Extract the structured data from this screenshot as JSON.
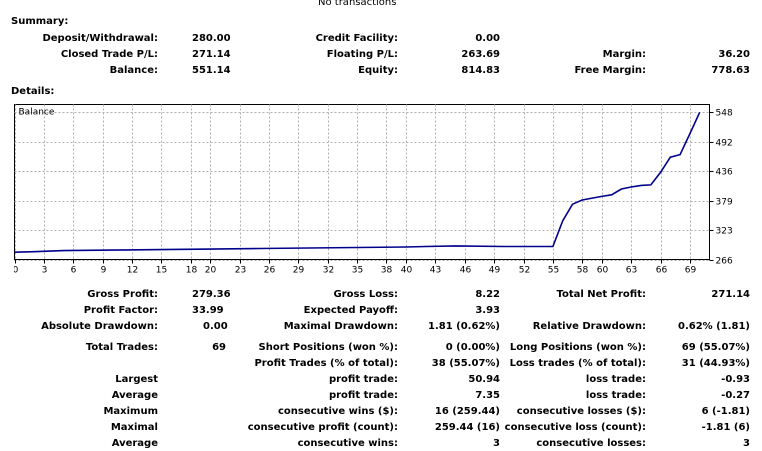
{
  "header": {
    "top_note": "No transactions"
  },
  "summary": {
    "title": "Summary:",
    "col1": [
      {
        "label": "Deposit/Withdrawal:",
        "value": "280.00"
      },
      {
        "label": "Closed Trade P/L:",
        "value": "271.14"
      },
      {
        "label": "Balance:",
        "value": "551.14"
      }
    ],
    "col2": [
      {
        "label": "Credit Facility:",
        "value": "0.00"
      },
      {
        "label": "Floating P/L:",
        "value": "263.69"
      },
      {
        "label": "Equity:",
        "value": "814.83"
      }
    ],
    "col3": [
      {
        "label": "Margin:",
        "value": "36.20"
      },
      {
        "label": "Free Margin:",
        "value": "778.63"
      }
    ]
  },
  "details": {
    "title": "Details:"
  },
  "chart_data": {
    "type": "line",
    "title": "Balance",
    "x_ticks": [
      0,
      3,
      6,
      9,
      12,
      15,
      18,
      20,
      23,
      26,
      29,
      32,
      35,
      38,
      40,
      43,
      46,
      49,
      52,
      55,
      58,
      60,
      63,
      66,
      69
    ],
    "y_ticks": [
      266,
      323,
      379,
      436,
      492,
      548
    ],
    "xlim": [
      0,
      71
    ],
    "ylim": [
      266,
      563
    ],
    "grid": true,
    "series": [
      {
        "color": "#00008b",
        "x": [
          0,
          2,
          5,
          10,
          15,
          20,
          25,
          30,
          35,
          40,
          42,
          45,
          50,
          55,
          56,
          57,
          58,
          60,
          61,
          62,
          63,
          64,
          65,
          66,
          67,
          68,
          69,
          70
        ],
        "y": [
          280,
          281,
          283,
          284,
          285,
          286,
          287,
          288,
          289,
          290,
          291,
          292,
          291,
          291,
          340,
          372,
          380,
          387,
          390,
          401,
          405,
          408,
          409,
          433,
          462,
          467,
          507,
          548
        ]
      }
    ]
  },
  "stats": {
    "gross_profit_label": "Gross Profit:",
    "gross_profit": "279.36",
    "gross_loss_label": "Gross Loss:",
    "gross_loss": "8.22",
    "total_net_profit_label": "Total Net Profit:",
    "total_net_profit": "271.14",
    "profit_factor_label": "Profit Factor:",
    "profit_factor": "33.99",
    "expected_payoff_label": "Expected Payoff:",
    "expected_payoff": "3.93",
    "absolute_drawdown_label": "Absolute Drawdown:",
    "absolute_drawdown": "0.00",
    "maximal_drawdown_label": "Maximal Drawdown:",
    "maximal_drawdown": "1.81 (0.62%)",
    "relative_drawdown_label": "Relative Drawdown:",
    "relative_drawdown": "0.62% (1.81)",
    "total_trades_label": "Total Trades:",
    "total_trades": "69",
    "short_positions_label": "Short Positions (won %):",
    "short_positions": "0 (0.00%)",
    "long_positions_label": "Long Positions (won %):",
    "long_positions": "69 (55.07%)",
    "profit_trades_label": "Profit Trades (% of total):",
    "profit_trades": "38 (55.07%)",
    "loss_trades_label": "Loss trades (% of total):",
    "loss_trades": "31 (44.93%)",
    "largest_label": "Largest",
    "largest_profit_label": "profit trade:",
    "largest_profit": "50.94",
    "largest_loss_label": "loss trade:",
    "largest_loss": "-0.93",
    "average_label": "Average",
    "average_profit_label": "profit trade:",
    "average_profit": "7.35",
    "average_loss_label": "loss trade:",
    "average_loss": "-0.27",
    "maximum_label": "Maximum",
    "max_cons_wins_label": "consecutive wins ($):",
    "max_cons_wins": "16 (259.44)",
    "max_cons_losses_label": "consecutive losses ($):",
    "max_cons_losses": "6 (-1.81)",
    "maximal_label": "Maximal",
    "maximal_cons_profit_label": "consecutive profit (count):",
    "maximal_cons_profit": "259.44 (16)",
    "maximal_cons_loss_label": "consecutive loss (count):",
    "maximal_cons_loss": "-1.81 (6)",
    "average2_label": "Average",
    "avg_cons_wins_label": "consecutive wins:",
    "avg_cons_wins": "3",
    "avg_cons_losses_label": "consecutive losses:",
    "avg_cons_losses": "3"
  }
}
